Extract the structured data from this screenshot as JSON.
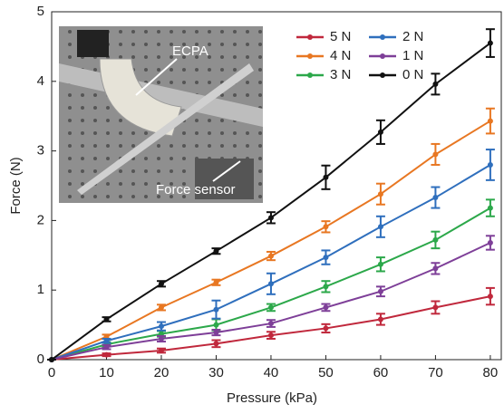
{
  "chart_data": {
    "type": "line",
    "x_label": "Pressure (kPa)",
    "y_label": "Force (N)",
    "x": [
      0,
      10,
      20,
      30,
      40,
      50,
      60,
      70,
      80
    ],
    "xlim": [
      0,
      82
    ],
    "xticks": [
      0,
      10,
      20,
      30,
      40,
      50,
      60,
      70,
      80
    ],
    "ylim": [
      0,
      5
    ],
    "yticks": [
      0,
      1,
      2,
      3,
      4,
      5
    ],
    "annotations": [
      "ECPA",
      "Force sensor"
    ],
    "series": [
      {
        "name": "5 N",
        "color": "#c0283c",
        "values": [
          0,
          0.07,
          0.13,
          0.23,
          0.35,
          0.45,
          0.58,
          0.75,
          0.91
        ],
        "errors": [
          0,
          0.02,
          0.03,
          0.05,
          0.05,
          0.06,
          0.08,
          0.09,
          0.12
        ]
      },
      {
        "name": "4 N",
        "color": "#e87722",
        "values": [
          0,
          0.33,
          0.75,
          1.11,
          1.49,
          1.91,
          2.38,
          2.95,
          3.43
        ],
        "errors": [
          0,
          0.03,
          0.04,
          0.04,
          0.06,
          0.08,
          0.15,
          0.15,
          0.18
        ]
      },
      {
        "name": "3 N",
        "color": "#2ca84a",
        "values": [
          0,
          0.22,
          0.37,
          0.5,
          0.75,
          1.05,
          1.37,
          1.72,
          2.18
        ],
        "errors": [
          0,
          0.03,
          0.04,
          0.08,
          0.05,
          0.08,
          0.1,
          0.12,
          0.12
        ]
      },
      {
        "name": "2 N",
        "color": "#2f6fbd",
        "values": [
          0,
          0.27,
          0.48,
          0.72,
          1.09,
          1.47,
          1.91,
          2.33,
          2.8
        ],
        "errors": [
          0,
          0.03,
          0.06,
          0.13,
          0.15,
          0.1,
          0.15,
          0.15,
          0.22
        ]
      },
      {
        "name": "1 N",
        "color": "#7e3f98",
        "values": [
          0,
          0.18,
          0.3,
          0.39,
          0.52,
          0.75,
          0.98,
          1.31,
          1.68
        ],
        "errors": [
          0,
          0.03,
          0.04,
          0.04,
          0.05,
          0.05,
          0.07,
          0.08,
          0.1
        ]
      },
      {
        "name": "0 N",
        "color": "#111111",
        "values": [
          0,
          0.58,
          1.09,
          1.56,
          2.04,
          2.62,
          3.27,
          3.96,
          4.55
        ],
        "errors": [
          0,
          0.03,
          0.04,
          0.04,
          0.08,
          0.17,
          0.17,
          0.15,
          0.2
        ]
      }
    ]
  }
}
